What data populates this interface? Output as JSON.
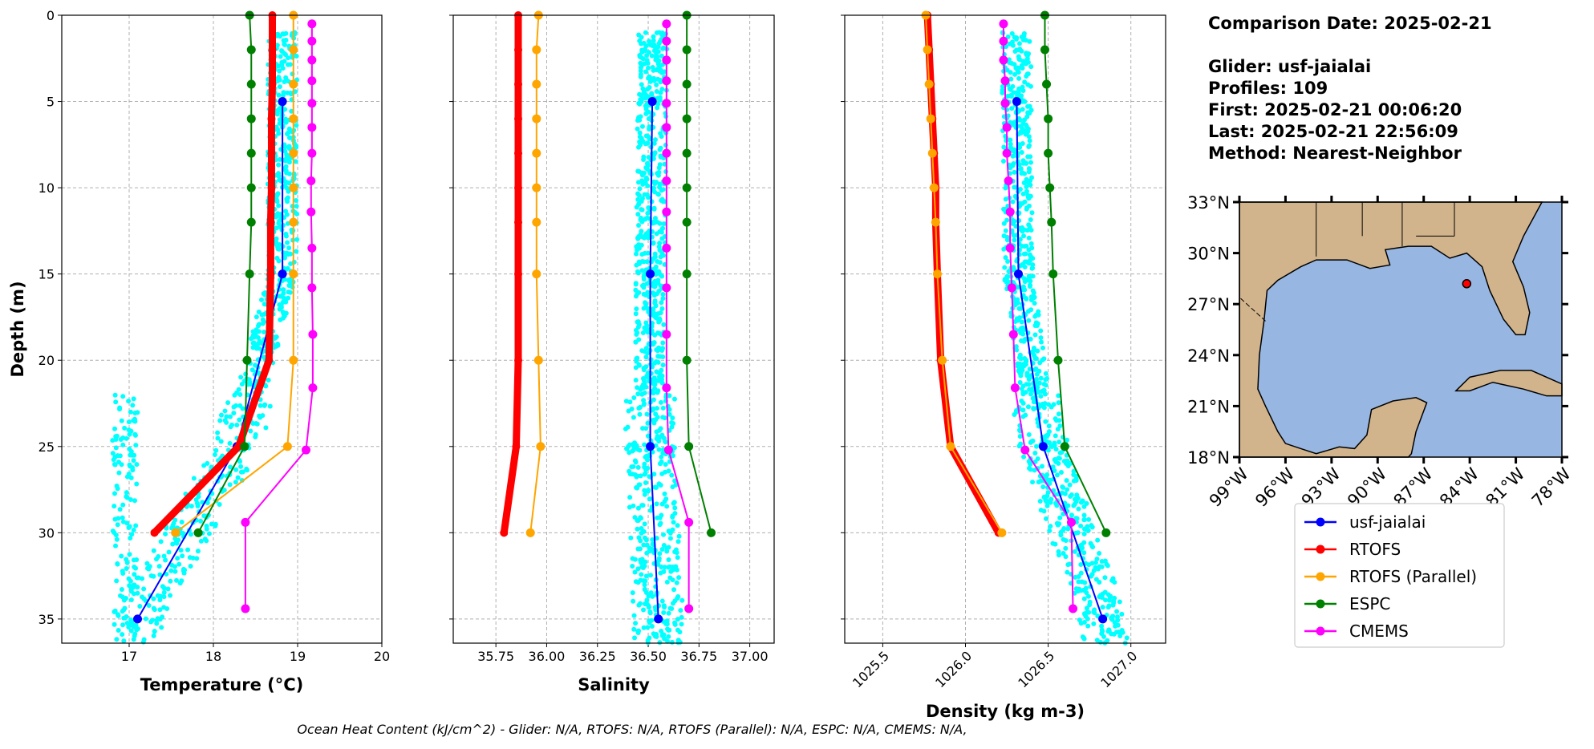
{
  "info": {
    "comparison_date": "Comparison Date: 2025-02-21",
    "glider": "Glider: usf-jaialai",
    "profiles": "Profiles: 109",
    "first": "First: 2025-02-21 00:06:20",
    "last": "Last: 2025-02-21 22:56:09",
    "method": "Method: Nearest-Neighbor"
  },
  "footer": "Ocean Heat Content (kJ/cm^2) - Glider: N/A,  RTOFS: N/A,  RTOFS (Parallel): N/A,  ESPC: N/A,  CMEMS: N/A,",
  "legend": [
    {
      "name": "usf-jaialai",
      "color": "#0000ff"
    },
    {
      "name": "RTOFS",
      "color": "#ff0000"
    },
    {
      "name": "RTOFS (Parallel)",
      "color": "#ffa500"
    },
    {
      "name": "ESPC",
      "color": "#008000"
    },
    {
      "name": "CMEMS",
      "color": "#ff00ff"
    }
  ],
  "glider_scatter_color": "#00ffff",
  "map": {
    "lon_ticks": [
      "99°W",
      "96°W",
      "93°W",
      "90°W",
      "87°W",
      "84°W",
      "81°W",
      "78°W"
    ],
    "lat_ticks": [
      "33°N",
      "30°N",
      "27°N",
      "24°N",
      "21°N",
      "18°N"
    ],
    "lon_range": [
      -99,
      -78
    ],
    "lat_range": [
      18,
      33
    ],
    "land_color": "#d2b48c",
    "water_color": "#97b6e1",
    "glider_position": {
      "lon": -84.2,
      "lat": 28.2,
      "color": "#ff0000"
    }
  },
  "chart_data": [
    {
      "type": "line",
      "xlabel": "Temperature (°C)",
      "ylabel": "Depth (m)",
      "xlim": [
        16.2,
        20
      ],
      "ylim": [
        36.4,
        0
      ],
      "xticks": [
        "17",
        "18",
        "19",
        "20"
      ],
      "yticks": [
        "0",
        "5",
        "10",
        "15",
        "20",
        "25",
        "30",
        "35"
      ],
      "grid": true,
      "series": [
        {
          "name": "usf-jaialai",
          "depth": [
            5,
            15,
            25,
            35
          ],
          "values": [
            18.82,
            18.82,
            18.28,
            17.1
          ]
        },
        {
          "name": "RTOFS",
          "depth": [
            0,
            2,
            4,
            6,
            8,
            10,
            12,
            15,
            20,
            25,
            30
          ],
          "values": [
            18.7,
            18.7,
            18.7,
            18.69,
            18.69,
            18.69,
            18.68,
            18.68,
            18.66,
            18.3,
            17.3
          ]
        },
        {
          "name": "RTOFS (Parallel)",
          "depth": [
            0,
            2,
            4,
            6,
            8,
            10,
            12,
            15,
            20,
            25,
            30
          ],
          "values": [
            18.95,
            18.95,
            18.95,
            18.95,
            18.95,
            18.95,
            18.95,
            18.95,
            18.95,
            18.88,
            17.55
          ]
        },
        {
          "name": "ESPC",
          "depth": [
            0,
            2,
            4,
            6,
            8,
            10,
            12,
            15,
            20,
            25,
            30
          ],
          "values": [
            18.43,
            18.45,
            18.45,
            18.45,
            18.45,
            18.45,
            18.45,
            18.43,
            18.4,
            18.37,
            17.82
          ]
        },
        {
          "name": "CMEMS",
          "depth": [
            0.5,
            1.5,
            2.6,
            3.8,
            5.1,
            6.5,
            8,
            9.6,
            11.4,
            13.5,
            15.8,
            18.5,
            21.6,
            25.2,
            29.4,
            34.4
          ],
          "values": [
            19.17,
            19.17,
            19.17,
            19.17,
            19.17,
            19.17,
            19.17,
            19.16,
            19.16,
            19.17,
            19.17,
            19.18,
            19.18,
            19.1,
            18.38,
            18.38
          ]
        }
      ]
    },
    {
      "type": "line",
      "xlabel": "Salinity",
      "xlim": [
        35.54,
        37.12
      ],
      "ylim": [
        36.4,
        0
      ],
      "xticks": [
        "35.75",
        "36.00",
        "36.25",
        "36.50",
        "36.75",
        "37.00"
      ],
      "grid": true,
      "series": [
        {
          "name": "usf-jaialai",
          "depth": [
            5,
            15,
            25,
            35
          ],
          "values": [
            36.52,
            36.51,
            36.51,
            36.55
          ]
        },
        {
          "name": "RTOFS",
          "depth": [
            0,
            2,
            4,
            6,
            8,
            10,
            12,
            15,
            20,
            25,
            30
          ],
          "values": [
            35.86,
            35.86,
            35.86,
            35.86,
            35.86,
            35.86,
            35.86,
            35.86,
            35.86,
            35.85,
            35.79
          ]
        },
        {
          "name": "RTOFS (Parallel)",
          "depth": [
            0,
            2,
            4,
            6,
            8,
            10,
            12,
            15,
            20,
            25,
            30
          ],
          "values": [
            35.96,
            35.95,
            35.95,
            35.95,
            35.95,
            35.95,
            35.95,
            35.95,
            35.96,
            35.97,
            35.92
          ]
        },
        {
          "name": "ESPC",
          "depth": [
            0,
            2,
            4,
            6,
            8,
            10,
            12,
            15,
            20,
            25,
            30
          ],
          "values": [
            36.69,
            36.69,
            36.69,
            36.69,
            36.69,
            36.69,
            36.69,
            36.69,
            36.69,
            36.7,
            36.81
          ]
        },
        {
          "name": "CMEMS",
          "depth": [
            0.5,
            1.5,
            2.6,
            3.8,
            5.1,
            6.5,
            8,
            9.6,
            11.4,
            13.5,
            15.8,
            18.5,
            21.6,
            25.2,
            29.4,
            34.4
          ],
          "values": [
            36.59,
            36.59,
            36.59,
            36.59,
            36.59,
            36.59,
            36.59,
            36.59,
            36.59,
            36.59,
            36.59,
            36.59,
            36.59,
            36.6,
            36.7,
            36.7
          ]
        }
      ]
    },
    {
      "type": "line",
      "xlabel": "Density (kg m-3)",
      "xlim": [
        1025.27,
        1027.21
      ],
      "ylim": [
        36.4,
        0
      ],
      "xticks": [
        "1025.5",
        "1026.0",
        "1026.5",
        "1027.0"
      ],
      "grid": true,
      "series": [
        {
          "name": "usf-jaialai",
          "depth": [
            5,
            15,
            25,
            35
          ],
          "values": [
            1026.31,
            1026.32,
            1026.47,
            1026.83
          ]
        },
        {
          "name": "RTOFS",
          "depth": [
            0,
            2,
            4,
            6,
            8,
            10,
            12,
            15,
            20,
            25,
            30
          ],
          "values": [
            1025.77,
            1025.78,
            1025.79,
            1025.8,
            1025.81,
            1025.82,
            1025.82,
            1025.83,
            1025.85,
            1025.91,
            1026.2
          ]
        },
        {
          "name": "RTOFS (Parallel)",
          "depth": [
            0,
            2,
            4,
            6,
            8,
            10,
            12,
            15,
            20,
            25,
            30
          ],
          "values": [
            1025.76,
            1025.77,
            1025.78,
            1025.79,
            1025.8,
            1025.81,
            1025.82,
            1025.83,
            1025.86,
            1025.91,
            1026.22
          ]
        },
        {
          "name": "ESPC",
          "depth": [
            0,
            2,
            4,
            6,
            8,
            10,
            12,
            15,
            20,
            25,
            30
          ],
          "values": [
            1026.48,
            1026.48,
            1026.49,
            1026.5,
            1026.5,
            1026.51,
            1026.52,
            1026.53,
            1026.56,
            1026.6,
            1026.85
          ]
        },
        {
          "name": "CMEMS",
          "depth": [
            0.5,
            1.5,
            2.6,
            3.8,
            5.1,
            6.5,
            8,
            9.6,
            11.4,
            13.5,
            15.8,
            18.5,
            21.6,
            25.2,
            29.4,
            34.4
          ],
          "values": [
            1026.23,
            1026.23,
            1026.23,
            1026.24,
            1026.24,
            1026.25,
            1026.25,
            1026.26,
            1026.27,
            1026.27,
            1026.28,
            1026.29,
            1026.3,
            1026.36,
            1026.64,
            1026.65
          ]
        }
      ]
    }
  ]
}
